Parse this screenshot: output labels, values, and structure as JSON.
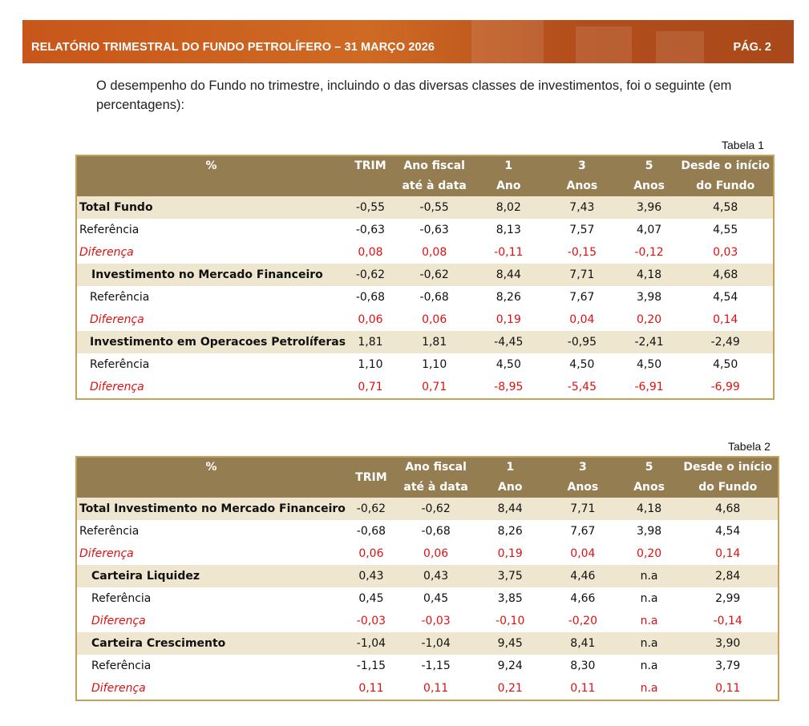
{
  "header": {
    "title": "RELATÓRIO TRIMESTRAL DO FUNDO PETROLÍFERO – 31 MARÇO 2026",
    "page": "PÁG. 2"
  },
  "intro": "O desempenho do Fundo no trimestre, incluindo o das diversas classes de investimentos, foi o seguinte (em percentagens):",
  "table1": {
    "caption": "Tabela 1",
    "headers": {
      "label": "%",
      "trim": "TRIM",
      "ytd_1": "Ano fiscal",
      "ytd_2": "até à data",
      "y1_1": "1",
      "y1_2": "Ano",
      "y3_1": "3",
      "y3_2": "Anos",
      "y5_1": "5",
      "y5_2": "Anos",
      "inc_1": "Desde o início",
      "inc_2": "do Fundo"
    },
    "rows": [
      {
        "label": "Total Fundo",
        "values": [
          "-0,55",
          "-0,55",
          "8,02",
          "7,43",
          "3,96",
          "4,58"
        ]
      },
      {
        "label": "Referência",
        "values": [
          "-0,63",
          "-0,63",
          "8,13",
          "7,57",
          "4,07",
          "4,55"
        ]
      },
      {
        "label": "Diferença",
        "values": [
          "0,08",
          "0,08",
          "-0,11",
          "-0,15",
          "-0,12",
          "0,03"
        ]
      },
      {
        "label": "Investimento no Mercado Financeiro",
        "values": [
          "-0,62",
          "-0,62",
          "8,44",
          "7,71",
          "4,18",
          "4,68"
        ]
      },
      {
        "label": "Referência",
        "values": [
          "-0,68",
          "-0,68",
          "8,26",
          "7,67",
          "3,98",
          "4,54"
        ]
      },
      {
        "label": "Diferença",
        "values": [
          "0,06",
          "0,06",
          "0,19",
          "0,04",
          "0,20",
          "0,14"
        ]
      },
      {
        "label": "Investimento em Operacoes Petrolíferas",
        "values": [
          "1,81",
          "1,81",
          "-4,45",
          "-0,95",
          "-2,41",
          "-2,49"
        ]
      },
      {
        "label": "Referência",
        "values": [
          "1,10",
          "1,10",
          "4,50",
          "4,50",
          "4,50",
          "4,50"
        ]
      },
      {
        "label": "Diferença",
        "values": [
          "0,71",
          "0,71",
          "-8,95",
          "-5,45",
          "-6,91",
          "-6,99"
        ]
      }
    ]
  },
  "table2": {
    "caption": "Tabela 2",
    "headers": {
      "label": "%",
      "trim": "TRIM",
      "ytd_1": "Ano fiscal",
      "ytd_2": "até à data",
      "y1_1": "1",
      "y1_2": "Ano",
      "y3_1": "3",
      "y3_2": "Anos",
      "y5_1": "5",
      "y5_2": "Anos",
      "inc_1": "Desde o início",
      "inc_2": "do Fundo"
    },
    "rows": [
      {
        "label": "Total Investimento no Mercado Financeiro",
        "values": [
          "-0,62",
          "-0,62",
          "8,44",
          "7,71",
          "4,18",
          "4,68"
        ]
      },
      {
        "label": "Referência",
        "values": [
          "-0,68",
          "-0,68",
          "8,26",
          "7,67",
          "3,98",
          "4,54"
        ]
      },
      {
        "label": "Diferença",
        "values": [
          "0,06",
          "0,06",
          "0,19",
          "0,04",
          "0,20",
          "0,14"
        ]
      },
      {
        "label": "Carteira Liquidez",
        "values": [
          "0,43",
          "0,43",
          "3,75",
          "4,46",
          "n.a",
          "2,84"
        ]
      },
      {
        "label": "Referência",
        "values": [
          "0,45",
          "0,45",
          "3,85",
          "4,66",
          "n.a",
          "2,99"
        ]
      },
      {
        "label": "Diferença",
        "values": [
          "-0,03",
          "-0,03",
          "-0,10",
          "-0,20",
          "n.a",
          "-0,14"
        ]
      },
      {
        "label": "Carteira Crescimento",
        "values": [
          "-1,04",
          "-1,04",
          "9,45",
          "8,41",
          "n.a",
          "3,90"
        ]
      },
      {
        "label": "Referência",
        "values": [
          "-1,15",
          "-1,15",
          "9,24",
          "8,30",
          "n.a",
          "3,79"
        ]
      },
      {
        "label": "Diferença",
        "values": [
          "0,11",
          "0,11",
          "0,21",
          "0,11",
          "n.a",
          "0,11"
        ]
      }
    ]
  }
}
